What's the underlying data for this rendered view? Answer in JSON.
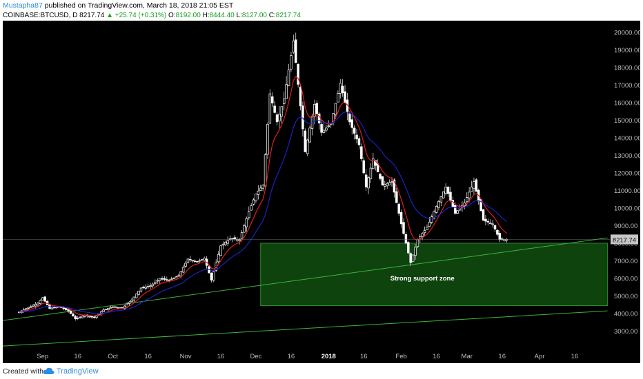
{
  "header": {
    "author": "Mustapha87",
    "published_text": "published on TradingView.com, March 18, 2018 21:05 EST",
    "symbol": "COINBASE:BTCUSD, D",
    "last": "8217.74",
    "change": "+25.74 (+0.31%)",
    "open_label": "O:",
    "open": "8192.00",
    "high_label": "H:",
    "high": "8444.40",
    "low_label": "L:",
    "low": "8127.00",
    "close_label": "C:",
    "close": "8217.74"
  },
  "footer": {
    "created_with": "Created with",
    "brand": "TradingView"
  },
  "colors": {
    "background": "#000000",
    "candle_up": "#ffffff",
    "candle_down": "#ffffff",
    "ema_fast": "#e31e1e",
    "ema_slow": "#1a22c8",
    "trendline": "#3cb43c",
    "zone_fill": "#0f4a0f",
    "axis_text": "#bfbfbf",
    "price_tag": "#c8c8c8"
  },
  "chart_data": {
    "type": "candlestick",
    "title": "COINBASE:BTCUSD, D",
    "xlabel": "",
    "ylabel": "",
    "ylim": [
      2000,
      20500
    ],
    "x_ticks": [
      "Sep",
      "16",
      "Oct",
      "16",
      "Nov",
      "16",
      "Dec",
      "16",
      "2018",
      "16",
      "Feb",
      "16",
      "Mar",
      "16",
      "Apr",
      "16"
    ],
    "y_ticks": [
      3000,
      4000,
      5000,
      6000,
      7000,
      8000,
      9000,
      10000,
      11000,
      12000,
      13000,
      14000,
      15000,
      16000,
      17000,
      18000,
      19000,
      20000
    ],
    "y_tick_labels": [
      "3000.00",
      "4000.00",
      "5000.00",
      "6000.00",
      "7000.00",
      "8000.00",
      "9000.00",
      "10000.00",
      "11000.00",
      "12000.00",
      "13000.00",
      "14000.00",
      "15000.00",
      "16000.00",
      "17000.00",
      "18000.00",
      "19000.00",
      "20000.00"
    ],
    "last_price": 8217.74,
    "last_price_label": "8217.74",
    "close_series": [
      {
        "date": "2017-08-22",
        "close": 4080
      },
      {
        "date": "2017-08-26",
        "close": 4350
      },
      {
        "date": "2017-08-30",
        "close": 4590
      },
      {
        "date": "2017-09-01",
        "close": 4900
      },
      {
        "date": "2017-09-04",
        "close": 4290
      },
      {
        "date": "2017-09-08",
        "close": 4390
      },
      {
        "date": "2017-09-12",
        "close": 4150
      },
      {
        "date": "2017-09-15",
        "close": 3700
      },
      {
        "date": "2017-09-19",
        "close": 3900
      },
      {
        "date": "2017-09-23",
        "close": 3780
      },
      {
        "date": "2017-09-27",
        "close": 4200
      },
      {
        "date": "2017-10-01",
        "close": 4390
      },
      {
        "date": "2017-10-05",
        "close": 4310
      },
      {
        "date": "2017-10-09",
        "close": 4770
      },
      {
        "date": "2017-10-13",
        "close": 5450
      },
      {
        "date": "2017-10-17",
        "close": 5580
      },
      {
        "date": "2017-10-21",
        "close": 5980
      },
      {
        "date": "2017-10-25",
        "close": 5900
      },
      {
        "date": "2017-10-29",
        "close": 6150
      },
      {
        "date": "2017-11-02",
        "close": 7100
      },
      {
        "date": "2017-11-06",
        "close": 6950
      },
      {
        "date": "2017-11-09",
        "close": 7150
      },
      {
        "date": "2017-11-12",
        "close": 5900
      },
      {
        "date": "2017-11-16",
        "close": 7850
      },
      {
        "date": "2017-11-20",
        "close": 8250
      },
      {
        "date": "2017-11-24",
        "close": 8200
      },
      {
        "date": "2017-11-28",
        "close": 9800
      },
      {
        "date": "2017-12-01",
        "close": 10800
      },
      {
        "date": "2017-12-04",
        "close": 11300
      },
      {
        "date": "2017-12-07",
        "close": 16500
      },
      {
        "date": "2017-12-10",
        "close": 14900
      },
      {
        "date": "2017-12-13",
        "close": 16200
      },
      {
        "date": "2017-12-17",
        "close": 19500
      },
      {
        "date": "2017-12-20",
        "close": 15800
      },
      {
        "date": "2017-12-22",
        "close": 13200
      },
      {
        "date": "2017-12-26",
        "close": 15900
      },
      {
        "date": "2017-12-29",
        "close": 14300
      },
      {
        "date": "2018-01-02",
        "close": 14800
      },
      {
        "date": "2018-01-06",
        "close": 17100
      },
      {
        "date": "2018-01-10",
        "close": 14900
      },
      {
        "date": "2018-01-14",
        "close": 13600
      },
      {
        "date": "2018-01-17",
        "close": 11200
      },
      {
        "date": "2018-01-20",
        "close": 12800
      },
      {
        "date": "2018-01-24",
        "close": 11300
      },
      {
        "date": "2018-01-28",
        "close": 11500
      },
      {
        "date": "2018-02-01",
        "close": 9100
      },
      {
        "date": "2018-02-05",
        "close": 6900
      },
      {
        "date": "2018-02-08",
        "close": 8200
      },
      {
        "date": "2018-02-12",
        "close": 8900
      },
      {
        "date": "2018-02-16",
        "close": 10100
      },
      {
        "date": "2018-02-20",
        "close": 11200
      },
      {
        "date": "2018-02-24",
        "close": 9700
      },
      {
        "date": "2018-02-28",
        "close": 10300
      },
      {
        "date": "2018-03-04",
        "close": 11500
      },
      {
        "date": "2018-03-08",
        "close": 9300
      },
      {
        "date": "2018-03-12",
        "close": 9100
      },
      {
        "date": "2018-03-15",
        "close": 8200
      },
      {
        "date": "2018-03-18",
        "close": 8217.74
      }
    ],
    "series": [
      {
        "name": "",
        "kind": "ema-fast",
        "color": "#e31e1e"
      },
      {
        "name": "",
        "kind": "ema-slow",
        "color": "#1a22c8"
      }
    ],
    "support_zone": {
      "price_top": 8000,
      "price_bottom": 4450,
      "date_start": "2017-12-03",
      "date_end": "2018-04-30"
    },
    "annotations": [
      {
        "text": "Strong support zone",
        "date": "2018-02-10",
        "price": 6000
      }
    ],
    "trendlines": [
      {
        "from": {
          "date": "2017-08-15",
          "price": 3600
        },
        "to": {
          "date": "2018-04-30",
          "price": 8300
        }
      },
      {
        "from": {
          "date": "2017-08-15",
          "price": 2150
        },
        "to": {
          "date": "2018-04-30",
          "price": 4150
        }
      }
    ],
    "grid": false,
    "legend": "none"
  }
}
